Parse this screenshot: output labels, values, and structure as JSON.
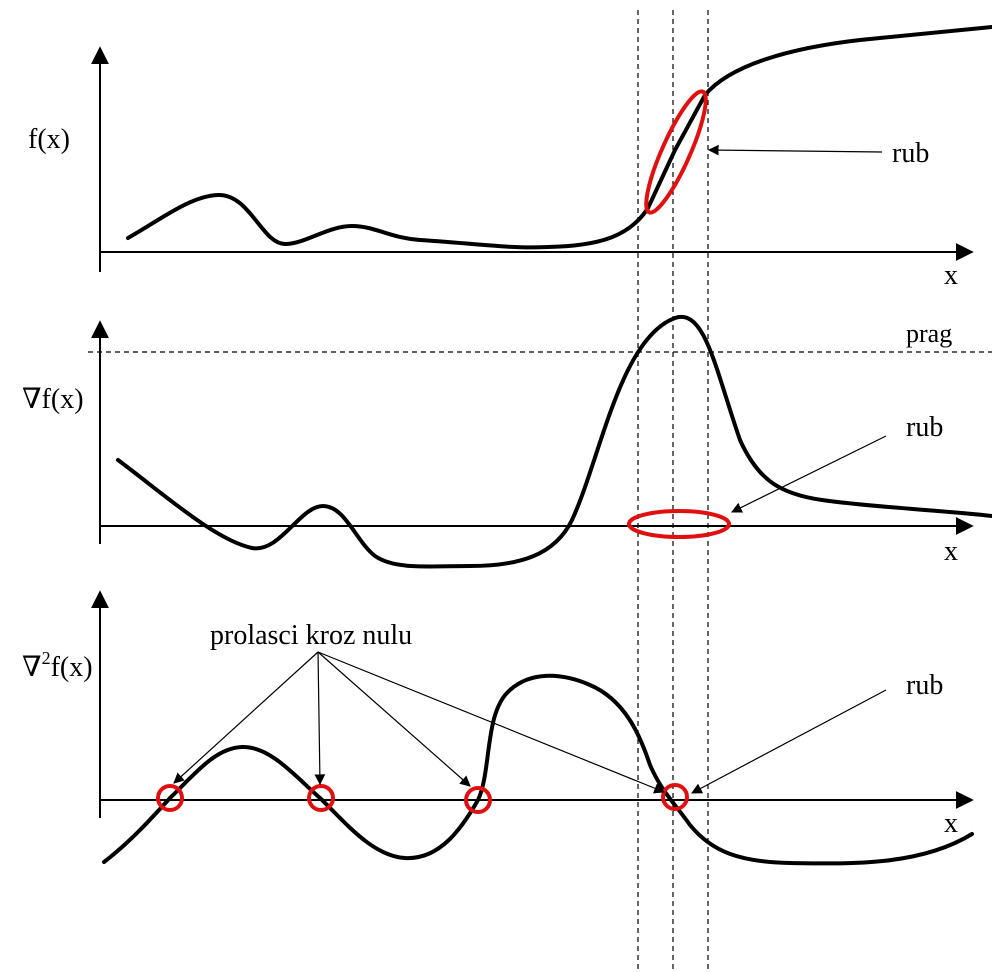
{
  "panels": {
    "top": {
      "y_label": "f(x)",
      "x_label": "x",
      "annotation": "rub"
    },
    "middle": {
      "y_label": "∇f(x)",
      "x_label": "x",
      "annotation": "rub",
      "threshold_label": "prag"
    },
    "bottom": {
      "y_label_symbol": "∇",
      "y_label_power": "2",
      "y_label_rest": "f(x)",
      "x_label": "x",
      "annotation": "rub",
      "zero_crossings_label": "prolasci kroz nulu"
    }
  },
  "colors": {
    "curve": "#000000",
    "marker": "#e01010",
    "guides": "#000000"
  }
}
